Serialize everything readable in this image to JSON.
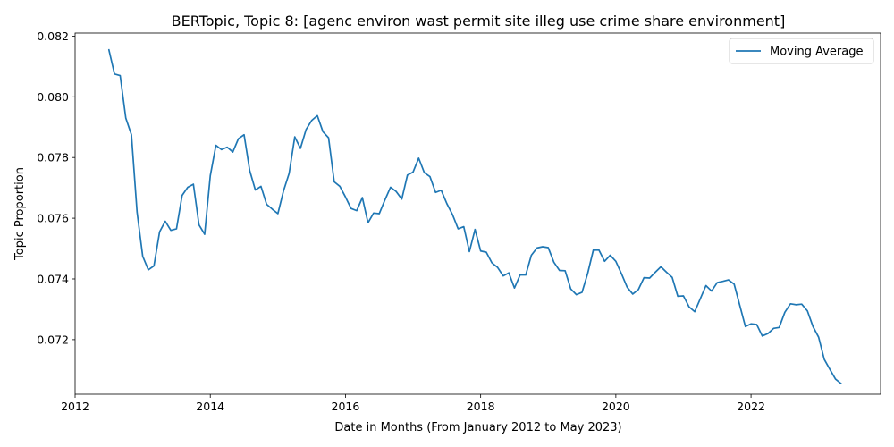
{
  "chart_data": {
    "type": "line",
    "title": "BERTopic, Topic 8: [agenc environ wast permit site illeg use crime share environment]",
    "xlabel": "Date in Months (From January 2012 to May 2023)",
    "ylabel": "Topic Proportion",
    "xlim": [
      "2012-01",
      "2023-12"
    ],
    "ylim": [
      0.0702,
      0.0821
    ],
    "xticks": [
      2012,
      2014,
      2016,
      2018,
      2020,
      2022
    ],
    "xtick_labels": [
      "2012",
      "2014",
      "2016",
      "2018",
      "2020",
      "2022"
    ],
    "yticks": [
      0.072,
      0.074,
      0.076,
      0.078,
      0.08,
      0.082
    ],
    "ytick_labels": [
      "0.072",
      "0.074",
      "0.076",
      "0.078",
      "0.080",
      "0.082"
    ],
    "legend": {
      "position": "top-right",
      "entries": [
        "Moving Average"
      ]
    },
    "grid": false,
    "colors": {
      "line": "#1f77b4"
    },
    "series": [
      {
        "name": "Moving Average",
        "x": [
          "2012-07",
          "2012-08",
          "2012-09",
          "2012-10",
          "2012-11",
          "2012-12",
          "2013-01",
          "2013-02",
          "2013-03",
          "2013-04",
          "2013-05",
          "2013-06",
          "2013-07",
          "2013-08",
          "2013-09",
          "2013-10",
          "2013-11",
          "2013-12",
          "2014-01",
          "2014-02",
          "2014-03",
          "2014-04",
          "2014-05",
          "2014-06",
          "2014-07",
          "2014-08",
          "2014-09",
          "2014-10",
          "2014-11",
          "2014-12",
          "2015-01",
          "2015-02",
          "2015-03",
          "2015-04",
          "2015-05",
          "2015-06",
          "2015-07",
          "2015-08",
          "2015-09",
          "2015-10",
          "2015-11",
          "2015-12",
          "2016-01",
          "2016-02",
          "2016-03",
          "2016-04",
          "2016-05",
          "2016-06",
          "2016-07",
          "2016-08",
          "2016-09",
          "2016-10",
          "2016-11",
          "2016-12",
          "2017-01",
          "2017-02",
          "2017-03",
          "2017-04",
          "2017-05",
          "2017-06",
          "2017-07",
          "2017-08",
          "2017-09",
          "2017-10",
          "2017-11",
          "2017-12",
          "2018-01",
          "2018-02",
          "2018-03",
          "2018-04",
          "2018-05",
          "2018-06",
          "2018-07",
          "2018-08",
          "2018-09",
          "2018-10",
          "2018-11",
          "2018-12",
          "2019-01",
          "2019-02",
          "2019-03",
          "2019-04",
          "2019-05",
          "2019-06",
          "2019-07",
          "2019-08",
          "2019-09",
          "2019-10",
          "2019-11",
          "2019-12",
          "2020-01",
          "2020-02",
          "2020-03",
          "2020-04",
          "2020-05",
          "2020-06",
          "2020-07",
          "2020-08",
          "2020-09",
          "2020-10",
          "2020-11",
          "2020-12",
          "2021-01",
          "2021-02",
          "2021-03",
          "2021-04",
          "2021-05",
          "2021-06",
          "2021-07",
          "2021-08",
          "2021-09",
          "2021-10",
          "2021-11",
          "2021-12",
          "2022-01",
          "2022-02",
          "2022-03",
          "2022-04",
          "2022-05",
          "2022-06",
          "2022-07",
          "2022-08",
          "2022-09",
          "2022-10",
          "2022-11",
          "2022-12",
          "2023-01",
          "2023-02",
          "2023-03",
          "2023-04",
          "2023-05"
        ],
        "y": [
          0.08155,
          0.08075,
          0.0807,
          0.0793,
          0.07875,
          0.0762,
          0.07475,
          0.0743,
          0.07443,
          0.07555,
          0.0759,
          0.0756,
          0.07565,
          0.07675,
          0.07702,
          0.07712,
          0.07578,
          0.07547,
          0.0774,
          0.0784,
          0.07826,
          0.07834,
          0.07818,
          0.07862,
          0.07875,
          0.07757,
          0.07693,
          0.07705,
          0.07646,
          0.0763,
          0.07615,
          0.0769,
          0.07748,
          0.07868,
          0.0783,
          0.07892,
          0.07922,
          0.07938,
          0.07885,
          0.07865,
          0.0772,
          0.07705,
          0.0767,
          0.07632,
          0.07625,
          0.07668,
          0.07585,
          0.07617,
          0.07615,
          0.0766,
          0.07702,
          0.07688,
          0.07663,
          0.07742,
          0.07752,
          0.07798,
          0.0775,
          0.07737,
          0.07685,
          0.07692,
          0.07648,
          0.07612,
          0.07565,
          0.07572,
          0.0749,
          0.07563,
          0.07492,
          0.07488,
          0.07453,
          0.07438,
          0.0741,
          0.0742,
          0.0737,
          0.07413,
          0.07413,
          0.07478,
          0.07502,
          0.07506,
          0.07503,
          0.07455,
          0.07428,
          0.07427,
          0.07367,
          0.07348,
          0.07356,
          0.07418,
          0.07495,
          0.07495,
          0.07458,
          0.07478,
          0.07458,
          0.07417,
          0.07373,
          0.0735,
          0.07365,
          0.07404,
          0.07403,
          0.07422,
          0.0744,
          0.07422,
          0.07405,
          0.07343,
          0.07344,
          0.07308,
          0.07292,
          0.07335,
          0.07378,
          0.0736,
          0.07388,
          0.07392,
          0.07397,
          0.07383,
          0.07313,
          0.07243,
          0.07252,
          0.0725,
          0.07212,
          0.0722,
          0.07237,
          0.0724,
          0.0729,
          0.07318,
          0.07315,
          0.07317,
          0.07295,
          0.07243,
          0.07208,
          0.07135,
          0.07102,
          0.0707,
          0.07055
        ]
      }
    ]
  }
}
